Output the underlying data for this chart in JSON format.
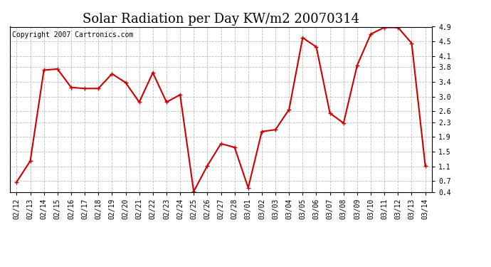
{
  "title": "Solar Radiation per Day KW/m2 20070314",
  "copyright": "Copyright 2007 Cartronics.com",
  "dates": [
    "02/12",
    "02/13",
    "02/14",
    "02/15",
    "02/16",
    "02/17",
    "02/18",
    "02/19",
    "02/20",
    "02/21",
    "02/22",
    "02/23",
    "02/24",
    "02/25",
    "02/26",
    "02/27",
    "02/28",
    "03/01",
    "03/02",
    "03/03",
    "03/04",
    "03/05",
    "03/06",
    "03/07",
    "03/08",
    "03/09",
    "03/10",
    "03/11",
    "03/12",
    "03/13",
    "03/14"
  ],
  "values": [
    0.68,
    1.25,
    3.72,
    3.75,
    3.25,
    3.22,
    3.22,
    3.62,
    3.38,
    2.85,
    3.65,
    2.85,
    3.05,
    0.42,
    1.12,
    1.72,
    1.62,
    0.52,
    2.05,
    2.1,
    2.65,
    4.6,
    4.35,
    2.55,
    2.28,
    3.85,
    4.7,
    4.88,
    4.88,
    4.45,
    1.12
  ],
  "line_color": "#cc0000",
  "marker": "+",
  "marker_size": 5,
  "marker_linewidth": 1.0,
  "bg_color": "#ffffff",
  "grid_color": "#bbbbbb",
  "ylim": [
    0.4,
    4.9
  ],
  "yticks": [
    0.4,
    0.7,
    1.1,
    1.5,
    1.9,
    2.3,
    2.6,
    3.0,
    3.4,
    3.8,
    4.1,
    4.5,
    4.9
  ],
  "title_fontsize": 13,
  "copyright_fontsize": 7,
  "tick_fontsize": 7,
  "linewidth": 1.5,
  "fig_width": 6.9,
  "fig_height": 3.75,
  "dpi": 100
}
